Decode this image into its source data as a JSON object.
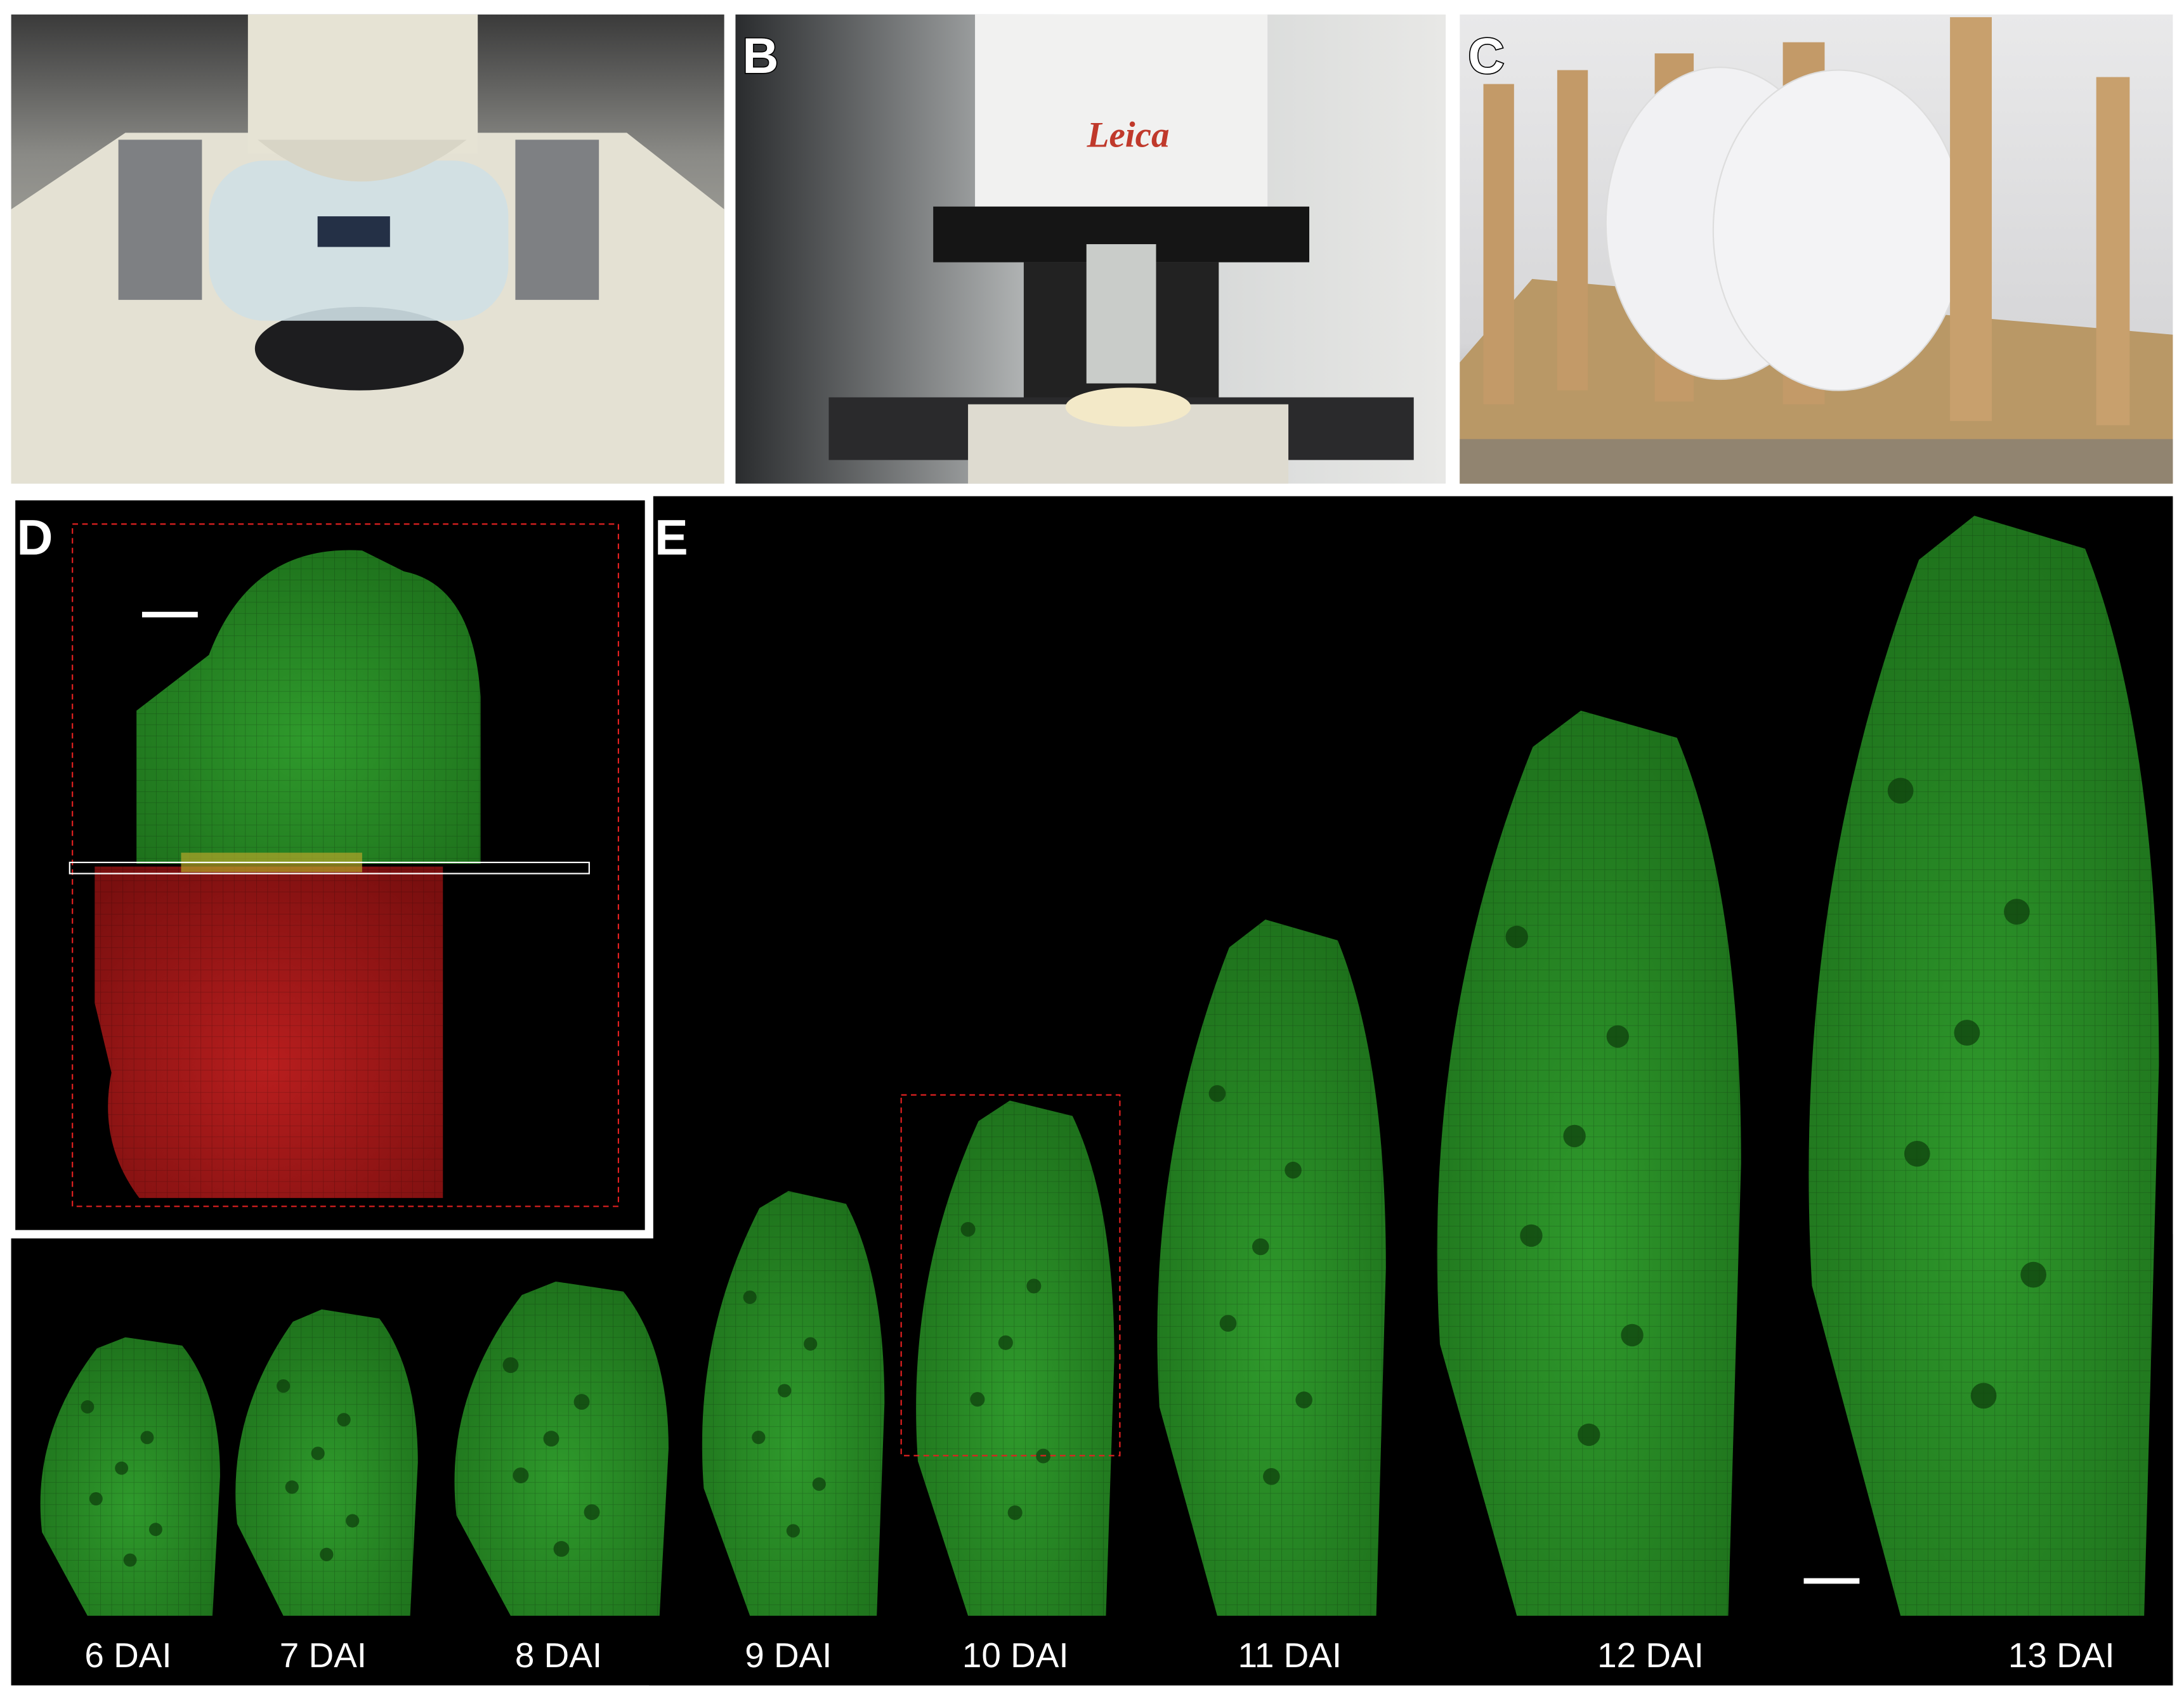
{
  "panels": {
    "b": {
      "label": "B",
      "brand": "Leica"
    },
    "c": {
      "label": "C"
    },
    "d": {
      "label": "D"
    },
    "e": {
      "label": "E"
    }
  },
  "timeline": {
    "labels": [
      "6 DAI",
      "7 DAI",
      "8 DAI",
      "9 DAI",
      "10 DAI",
      "11 DAI",
      "12 DAI",
      "13 DAI"
    ]
  }
}
